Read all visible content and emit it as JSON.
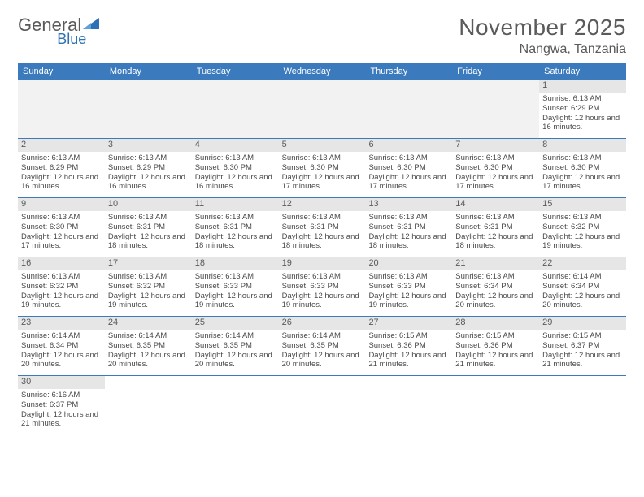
{
  "logo": {
    "part1": "General",
    "part2": "Blue"
  },
  "title": "November 2025",
  "location": "Nangwa, Tanzania",
  "colors": {
    "header_bg": "#3b7bbd",
    "header_fg": "#ffffff",
    "daynum_bg": "#e6e6e6",
    "border": "#3b7bbd",
    "logo_gray": "#5a5a5a",
    "logo_blue": "#2e72b5",
    "text": "#4a4a4a",
    "empty_bg": "#f2f2f2"
  },
  "day_labels": [
    "Sunday",
    "Monday",
    "Tuesday",
    "Wednesday",
    "Thursday",
    "Friday",
    "Saturday"
  ],
  "weeks": [
    [
      {
        "n": "",
        "sr": "",
        "ss": "",
        "dl": ""
      },
      {
        "n": "",
        "sr": "",
        "ss": "",
        "dl": ""
      },
      {
        "n": "",
        "sr": "",
        "ss": "",
        "dl": ""
      },
      {
        "n": "",
        "sr": "",
        "ss": "",
        "dl": ""
      },
      {
        "n": "",
        "sr": "",
        "ss": "",
        "dl": ""
      },
      {
        "n": "",
        "sr": "",
        "ss": "",
        "dl": ""
      },
      {
        "n": "1",
        "sr": "Sunrise: 6:13 AM",
        "ss": "Sunset: 6:29 PM",
        "dl": "Daylight: 12 hours and 16 minutes."
      }
    ],
    [
      {
        "n": "2",
        "sr": "Sunrise: 6:13 AM",
        "ss": "Sunset: 6:29 PM",
        "dl": "Daylight: 12 hours and 16 minutes."
      },
      {
        "n": "3",
        "sr": "Sunrise: 6:13 AM",
        "ss": "Sunset: 6:29 PM",
        "dl": "Daylight: 12 hours and 16 minutes."
      },
      {
        "n": "4",
        "sr": "Sunrise: 6:13 AM",
        "ss": "Sunset: 6:30 PM",
        "dl": "Daylight: 12 hours and 16 minutes."
      },
      {
        "n": "5",
        "sr": "Sunrise: 6:13 AM",
        "ss": "Sunset: 6:30 PM",
        "dl": "Daylight: 12 hours and 17 minutes."
      },
      {
        "n": "6",
        "sr": "Sunrise: 6:13 AM",
        "ss": "Sunset: 6:30 PM",
        "dl": "Daylight: 12 hours and 17 minutes."
      },
      {
        "n": "7",
        "sr": "Sunrise: 6:13 AM",
        "ss": "Sunset: 6:30 PM",
        "dl": "Daylight: 12 hours and 17 minutes."
      },
      {
        "n": "8",
        "sr": "Sunrise: 6:13 AM",
        "ss": "Sunset: 6:30 PM",
        "dl": "Daylight: 12 hours and 17 minutes."
      }
    ],
    [
      {
        "n": "9",
        "sr": "Sunrise: 6:13 AM",
        "ss": "Sunset: 6:30 PM",
        "dl": "Daylight: 12 hours and 17 minutes."
      },
      {
        "n": "10",
        "sr": "Sunrise: 6:13 AM",
        "ss": "Sunset: 6:31 PM",
        "dl": "Daylight: 12 hours and 18 minutes."
      },
      {
        "n": "11",
        "sr": "Sunrise: 6:13 AM",
        "ss": "Sunset: 6:31 PM",
        "dl": "Daylight: 12 hours and 18 minutes."
      },
      {
        "n": "12",
        "sr": "Sunrise: 6:13 AM",
        "ss": "Sunset: 6:31 PM",
        "dl": "Daylight: 12 hours and 18 minutes."
      },
      {
        "n": "13",
        "sr": "Sunrise: 6:13 AM",
        "ss": "Sunset: 6:31 PM",
        "dl": "Daylight: 12 hours and 18 minutes."
      },
      {
        "n": "14",
        "sr": "Sunrise: 6:13 AM",
        "ss": "Sunset: 6:31 PM",
        "dl": "Daylight: 12 hours and 18 minutes."
      },
      {
        "n": "15",
        "sr": "Sunrise: 6:13 AM",
        "ss": "Sunset: 6:32 PM",
        "dl": "Daylight: 12 hours and 19 minutes."
      }
    ],
    [
      {
        "n": "16",
        "sr": "Sunrise: 6:13 AM",
        "ss": "Sunset: 6:32 PM",
        "dl": "Daylight: 12 hours and 19 minutes."
      },
      {
        "n": "17",
        "sr": "Sunrise: 6:13 AM",
        "ss": "Sunset: 6:32 PM",
        "dl": "Daylight: 12 hours and 19 minutes."
      },
      {
        "n": "18",
        "sr": "Sunrise: 6:13 AM",
        "ss": "Sunset: 6:33 PM",
        "dl": "Daylight: 12 hours and 19 minutes."
      },
      {
        "n": "19",
        "sr": "Sunrise: 6:13 AM",
        "ss": "Sunset: 6:33 PM",
        "dl": "Daylight: 12 hours and 19 minutes."
      },
      {
        "n": "20",
        "sr": "Sunrise: 6:13 AM",
        "ss": "Sunset: 6:33 PM",
        "dl": "Daylight: 12 hours and 19 minutes."
      },
      {
        "n": "21",
        "sr": "Sunrise: 6:13 AM",
        "ss": "Sunset: 6:34 PM",
        "dl": "Daylight: 12 hours and 20 minutes."
      },
      {
        "n": "22",
        "sr": "Sunrise: 6:14 AM",
        "ss": "Sunset: 6:34 PM",
        "dl": "Daylight: 12 hours and 20 minutes."
      }
    ],
    [
      {
        "n": "23",
        "sr": "Sunrise: 6:14 AM",
        "ss": "Sunset: 6:34 PM",
        "dl": "Daylight: 12 hours and 20 minutes."
      },
      {
        "n": "24",
        "sr": "Sunrise: 6:14 AM",
        "ss": "Sunset: 6:35 PM",
        "dl": "Daylight: 12 hours and 20 minutes."
      },
      {
        "n": "25",
        "sr": "Sunrise: 6:14 AM",
        "ss": "Sunset: 6:35 PM",
        "dl": "Daylight: 12 hours and 20 minutes."
      },
      {
        "n": "26",
        "sr": "Sunrise: 6:14 AM",
        "ss": "Sunset: 6:35 PM",
        "dl": "Daylight: 12 hours and 20 minutes."
      },
      {
        "n": "27",
        "sr": "Sunrise: 6:15 AM",
        "ss": "Sunset: 6:36 PM",
        "dl": "Daylight: 12 hours and 21 minutes."
      },
      {
        "n": "28",
        "sr": "Sunrise: 6:15 AM",
        "ss": "Sunset: 6:36 PM",
        "dl": "Daylight: 12 hours and 21 minutes."
      },
      {
        "n": "29",
        "sr": "Sunrise: 6:15 AM",
        "ss": "Sunset: 6:37 PM",
        "dl": "Daylight: 12 hours and 21 minutes."
      }
    ],
    [
      {
        "n": "30",
        "sr": "Sunrise: 6:16 AM",
        "ss": "Sunset: 6:37 PM",
        "dl": "Daylight: 12 hours and 21 minutes."
      },
      {
        "n": "",
        "sr": "",
        "ss": "",
        "dl": ""
      },
      {
        "n": "",
        "sr": "",
        "ss": "",
        "dl": ""
      },
      {
        "n": "",
        "sr": "",
        "ss": "",
        "dl": ""
      },
      {
        "n": "",
        "sr": "",
        "ss": "",
        "dl": ""
      },
      {
        "n": "",
        "sr": "",
        "ss": "",
        "dl": ""
      },
      {
        "n": "",
        "sr": "",
        "ss": "",
        "dl": ""
      }
    ]
  ]
}
